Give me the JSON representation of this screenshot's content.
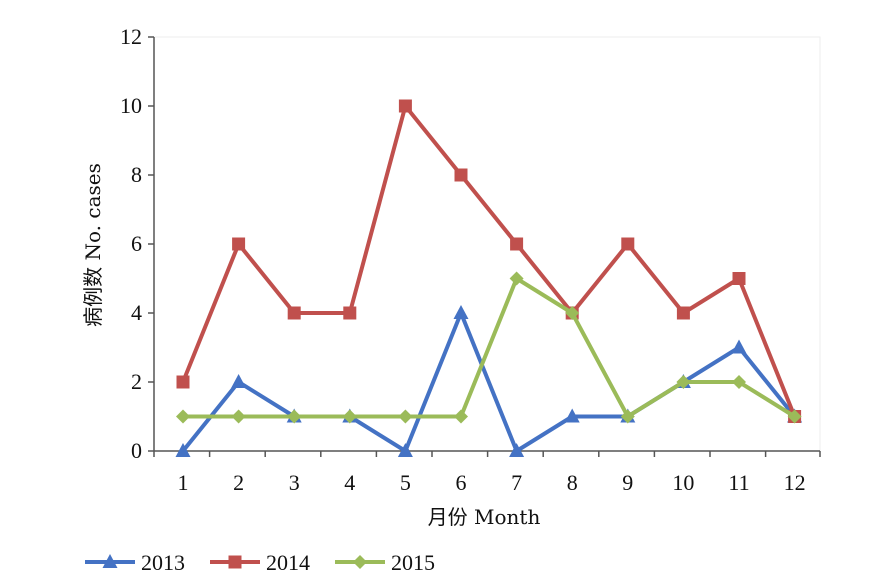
{
  "chart_data": {
    "type": "line",
    "xlabel": "月份 Month",
    "ylabel": "病例数 No. cases",
    "categories": [
      "1",
      "2",
      "3",
      "4",
      "5",
      "6",
      "7",
      "8",
      "9",
      "10",
      "11",
      "12"
    ],
    "ylim": [
      0,
      12
    ],
    "yticks": [
      "0",
      "2",
      "4",
      "6",
      "8",
      "10",
      "12"
    ],
    "grid": false,
    "legend_position": "bottom-left",
    "series": [
      {
        "name": "2013",
        "color": "#4472C4",
        "marker": "triangle",
        "values": [
          0,
          2,
          1,
          1,
          0,
          4,
          0,
          1,
          1,
          2,
          3,
          1
        ]
      },
      {
        "name": "2014",
        "color": "#C0504D",
        "marker": "square",
        "values": [
          2,
          6,
          4,
          4,
          10,
          8,
          6,
          4,
          6,
          4,
          5,
          1
        ]
      },
      {
        "name": "2015",
        "color": "#9BBB59",
        "marker": "diamond",
        "values": [
          1,
          1,
          1,
          1,
          1,
          1,
          5,
          4,
          1,
          2,
          2,
          1
        ]
      }
    ]
  }
}
